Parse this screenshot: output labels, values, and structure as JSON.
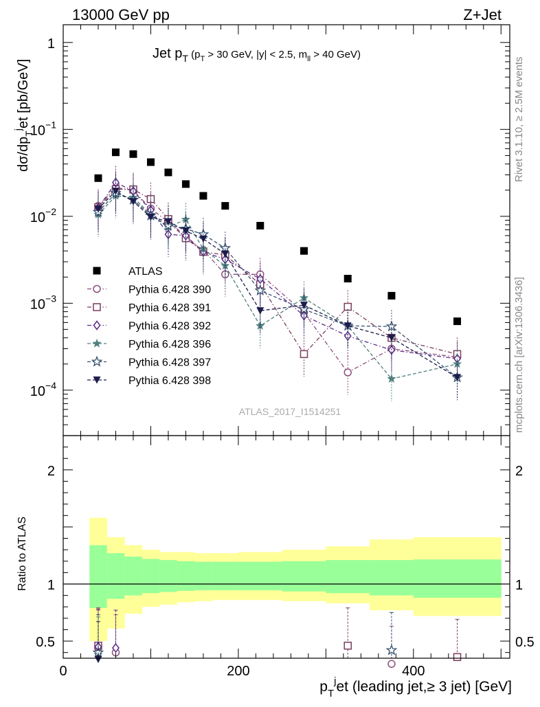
{
  "header": {
    "energy_label": "13000 GeV pp",
    "process_label": "Z+Jet",
    "side_label_top": "Rivet 3.1.10, ≥ 2.5M events",
    "side_label_bottom": "mcplots.cern.ch [arXiv:1306.3436]",
    "analysis_id": "ATLAS_2017_I1514251"
  },
  "chart_data": [
    {
      "type": "scatter",
      "panel": "main",
      "title": "Jet pT (pT > 30 GeV, |y| < 2.5, mll > 40 GeV)",
      "ylabel": "dσ/dp_T^j et [pb/GeV]",
      "yscale": "log",
      "ylim": [
        3e-05,
        1.6
      ],
      "xlim": [
        0,
        510
      ],
      "y_tick_labels": [
        "10^-4",
        "10^-3",
        "10^-2",
        "10^-1",
        "1"
      ],
      "legend_position": "left-middle",
      "series": [
        {
          "name": "ATLAS",
          "color": "#000000",
          "marker": "square-filled",
          "x": [
            40,
            60,
            80,
            100,
            120,
            140,
            160,
            185,
            225,
            275,
            325,
            375,
            450
          ],
          "y": [
            0.0275,
            0.0545,
            0.052,
            0.042,
            0.032,
            0.0235,
            0.0172,
            0.0132,
            0.0078,
            0.004,
            0.00192,
            0.00122,
            0.00062
          ]
        },
        {
          "name": "Pythia 6.428 390",
          "color": "#8b4e7b",
          "marker": "circle-open",
          "dash": "dashdot",
          "x": [
            40,
            60,
            80,
            100,
            120,
            140,
            160,
            185,
            225,
            275,
            325,
            375,
            450
          ],
          "y": [
            0.0132,
            0.0215,
            0.0198,
            0.0123,
            0.0086,
            0.0056,
            0.0041,
            0.00215,
            0.00215,
            0.00078,
            0.00016,
            0.0003,
            0.00024
          ]
        },
        {
          "name": "Pythia 6.428 391",
          "color": "#7a3c5c",
          "marker": "square-open",
          "dash": "dashdot",
          "x": [
            40,
            60,
            80,
            100,
            120,
            140,
            160,
            185,
            225,
            275,
            325,
            375,
            450
          ],
          "y": [
            0.0127,
            0.0205,
            0.0204,
            0.0158,
            0.0093,
            0.0056,
            0.0039,
            0.0036,
            0.00165,
            0.00026,
            0.00091,
            0.0004,
            0.00026
          ]
        },
        {
          "name": "Pythia 6.428 392",
          "color": "#5b2a86",
          "marker": "diamond-open",
          "dash": "dashdot",
          "x": [
            40,
            60,
            80,
            100,
            120,
            140,
            160,
            185,
            225,
            275,
            325,
            375,
            450
          ],
          "y": [
            0.0125,
            0.0245,
            0.0195,
            0.0118,
            0.0062,
            0.006,
            0.0039,
            0.0032,
            0.0019,
            0.00072,
            0.00042,
            0.00029,
            0.00023
          ]
        },
        {
          "name": "Pythia 6.428 396",
          "color": "#4f7f7f",
          "marker": "star-filled",
          "dash": "dashed",
          "x": [
            40,
            60,
            80,
            100,
            120,
            140,
            160,
            185,
            225,
            275,
            325,
            375,
            450
          ],
          "y": [
            0.0105,
            0.0172,
            0.0165,
            0.0105,
            0.0075,
            0.0092,
            0.0042,
            0.0027,
            0.00055,
            0.00115,
            0.00055,
            0.000135,
            0.0002
          ]
        },
        {
          "name": "Pythia 6.428 397",
          "color": "#34506e",
          "marker": "star-open",
          "dash": "dashed",
          "x": [
            40,
            60,
            80,
            100,
            120,
            140,
            160,
            185,
            225,
            275,
            325,
            375,
            450
          ],
          "y": [
            0.0112,
            0.0185,
            0.0155,
            0.0102,
            0.0078,
            0.0072,
            0.0062,
            0.0043,
            0.0014,
            0.00085,
            0.00055,
            0.00054,
            0.00014
          ]
        },
        {
          "name": "Pythia 6.428 398",
          "color": "#1c1c4c",
          "marker": "triangle-down-filled",
          "dash": "dashed",
          "x": [
            40,
            60,
            80,
            100,
            120,
            140,
            160,
            185,
            225,
            275,
            325,
            375,
            450
          ],
          "y": [
            0.0122,
            0.0195,
            0.0148,
            0.0098,
            0.0087,
            0.0068,
            0.0055,
            0.0037,
            0.00082,
            0.00095,
            0.00055,
            0.0004,
            0.00014
          ]
        }
      ]
    },
    {
      "type": "line",
      "panel": "ratio",
      "ylabel": "Ratio to ATLAS",
      "xlabel": "p_T^j et (leading jet,≥ 3 jet) [GeV]",
      "xlim": [
        0,
        510
      ],
      "ylim": [
        0.35,
        2.3
      ],
      "x_tick_labels": [
        "0",
        "200",
        "400"
      ],
      "y_tick_labels": [
        "0.5",
        "1",
        "2"
      ],
      "band_colors": {
        "inner": "#99ff99",
        "outer": "#ffff99"
      },
      "bands": {
        "edges": [
          30,
          50,
          70,
          90,
          110,
          130,
          150,
          170,
          200,
          250,
          300,
          350,
          400,
          500
        ],
        "inner_low": [
          0.79,
          0.87,
          0.9,
          0.92,
          0.93,
          0.94,
          0.945,
          0.945,
          0.945,
          0.935,
          0.92,
          0.9,
          0.88
        ],
        "inner_high": [
          1.34,
          1.27,
          1.24,
          1.22,
          1.21,
          1.2,
          1.195,
          1.195,
          1.195,
          1.2,
          1.21,
          1.21,
          1.215
        ],
        "outer_low": [
          0.5,
          0.61,
          0.74,
          0.8,
          0.82,
          0.84,
          0.85,
          0.86,
          0.86,
          0.85,
          0.83,
          0.77,
          0.72
        ],
        "outer_high": [
          1.58,
          1.41,
          1.34,
          1.3,
          1.28,
          1.28,
          1.27,
          1.27,
          1.28,
          1.3,
          1.33,
          1.39,
          1.41
        ]
      },
      "series": [
        {
          "name": "Pythia 6.428 390",
          "x": [
            40,
            60,
            375
          ],
          "y": [
            0.44,
            0.4,
            0.3
          ]
        },
        {
          "name": "Pythia 6.428 391",
          "x": [
            40,
            325,
            450
          ],
          "y": [
            0.46,
            0.46,
            0.36
          ]
        },
        {
          "name": "Pythia 6.428 392",
          "x": [
            40,
            60
          ],
          "y": [
            0.45,
            0.44
          ]
        },
        {
          "name": "Pythia 6.428 396",
          "x": [
            40
          ],
          "y": [
            0.38
          ]
        },
        {
          "name": "Pythia 6.428 397",
          "x": [
            40,
            375
          ],
          "y": [
            0.4,
            0.42
          ]
        },
        {
          "name": "Pythia 6.428 398",
          "x": [
            40
          ],
          "y": [
            0.34
          ]
        }
      ]
    }
  ]
}
